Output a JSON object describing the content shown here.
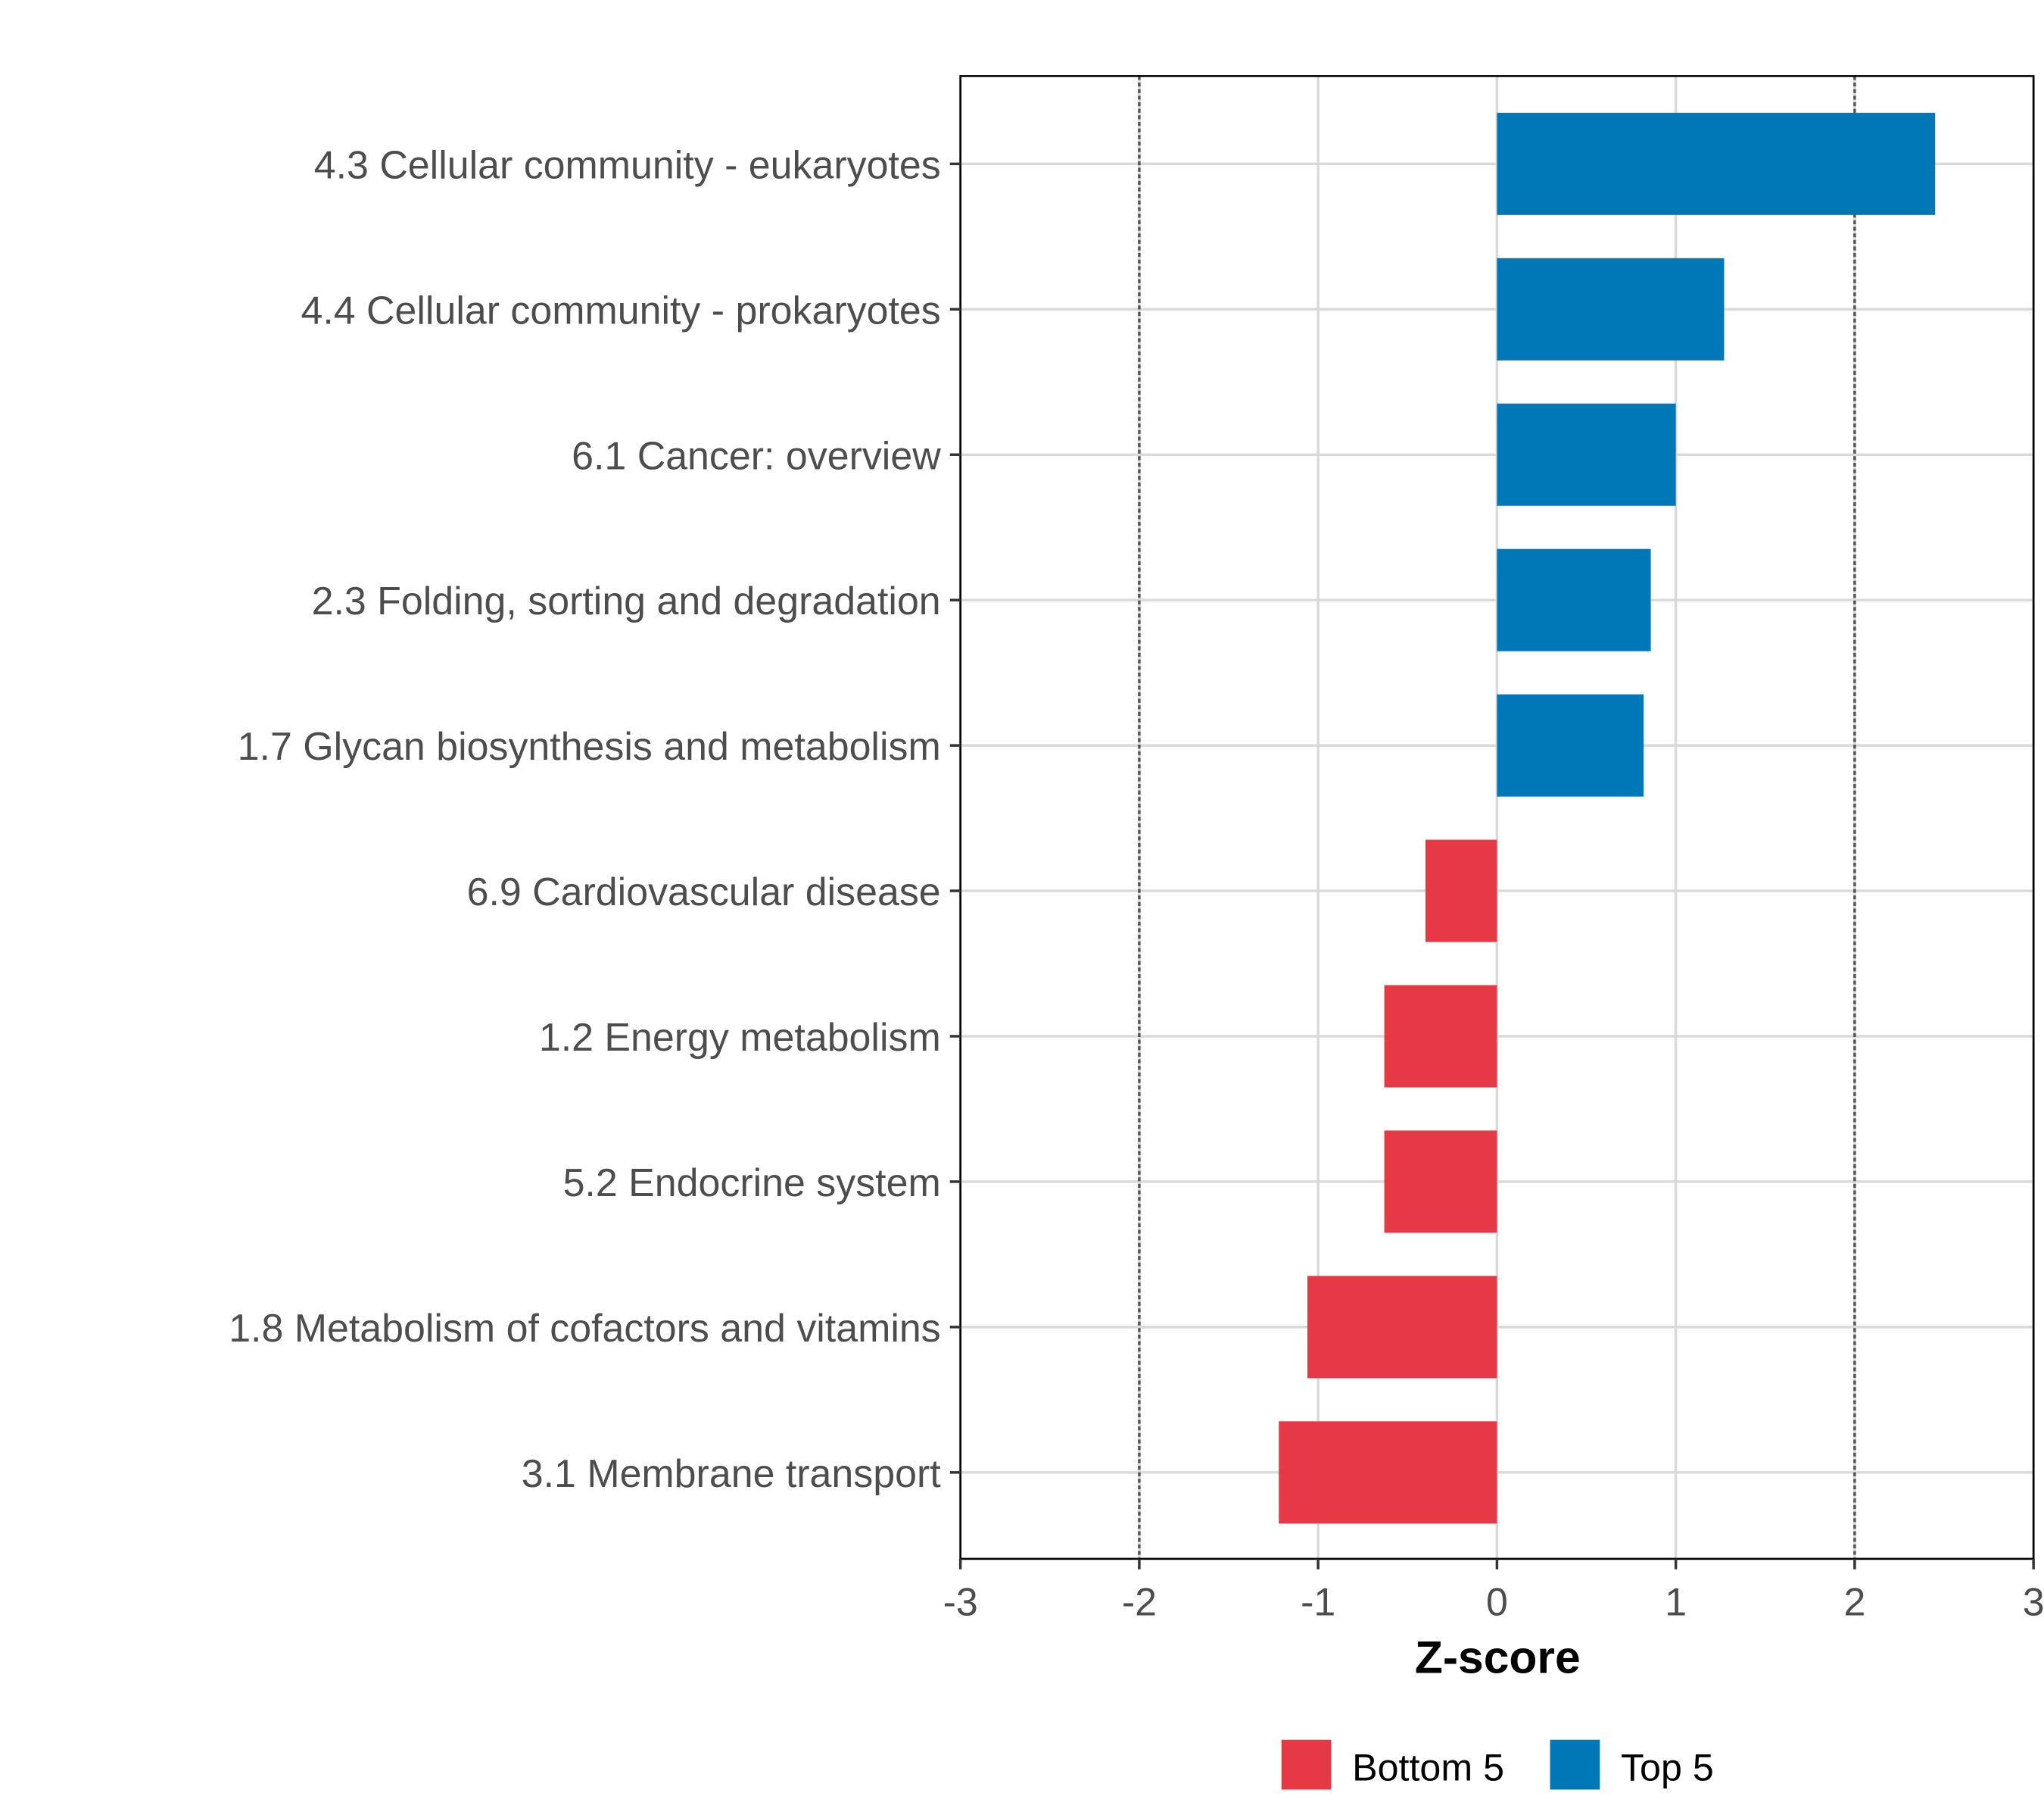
{
  "chart_data": {
    "type": "bar",
    "orientation": "horizontal",
    "title": "",
    "xlabel": "Z-score",
    "ylabel": "",
    "xlim": [
      -3,
      3
    ],
    "xticks": [
      "-3",
      "-2",
      "-1",
      "0",
      "1",
      "2",
      "3"
    ],
    "reference_lines": [
      -2,
      2
    ],
    "grid": true,
    "legend_position": "bottom",
    "colors": {
      "Bottom 5": "#E63946",
      "Top 5": "#0077B6"
    },
    "legend": [
      "Bottom 5",
      "Top 5"
    ],
    "categories": [
      "4.3 Cellular community - eukaryotes",
      "4.4 Cellular community - prokaryotes",
      "6.1 Cancer: overview",
      "2.3 Folding, sorting and degradation",
      "1.7 Glycan biosynthesis and metabolism",
      "6.9 Cardiovascular disease",
      "1.2 Energy metabolism",
      "5.2 Endocrine system",
      "1.8 Metabolism of cofactors and vitamins",
      "3.1 Membrane transport"
    ],
    "values": [
      2.45,
      1.27,
      1.0,
      0.86,
      0.82,
      -0.4,
      -0.63,
      -0.63,
      -1.06,
      -1.22
    ],
    "groups": [
      "Top 5",
      "Top 5",
      "Top 5",
      "Top 5",
      "Top 5",
      "Bottom 5",
      "Bottom 5",
      "Bottom 5",
      "Bottom 5",
      "Bottom 5"
    ]
  }
}
